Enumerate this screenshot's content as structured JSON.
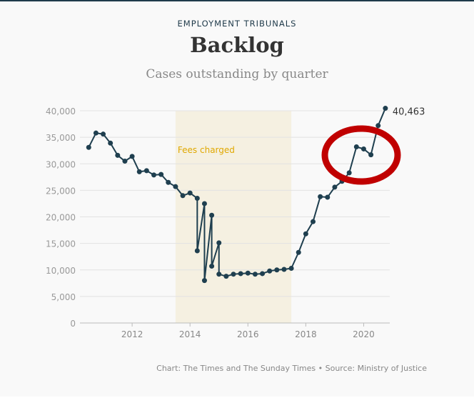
{
  "header": {
    "kicker": "EMPLOYMENT TRIBUNALS",
    "title": "Backlog",
    "subtitle": "Cases outstanding by quarter"
  },
  "footer": {
    "credit": "Chart: The Times and The Sunday Times • Source: Ministry of Justice"
  },
  "chart_data": {
    "type": "line",
    "title": "Backlog",
    "subtitle": "Cases outstanding by quarter",
    "xlabel": "",
    "ylabel": "",
    "xlim": [
      2010,
      2021
    ],
    "ylim": [
      0,
      40000
    ],
    "yticks": [
      0,
      5000,
      10000,
      15000,
      20000,
      25000,
      30000,
      35000,
      40000
    ],
    "ytick_labels": [
      "0",
      "5,000",
      "10,000",
      "15,000",
      "20,000",
      "25,000",
      "30,000",
      "35,000",
      "40,000"
    ],
    "xticks": [
      2012,
      2014,
      2016,
      2018,
      2020
    ],
    "xtick_labels": [
      "2012",
      "2014",
      "2016",
      "2018",
      "2020"
    ],
    "grid": true,
    "shaded_region": {
      "label": "Fees charged",
      "from": 2013.5,
      "to": 2017.5
    },
    "end_label": "40,463",
    "series": [
      {
        "name": "Cases outstanding",
        "x": [
          2010.5,
          2010.75,
          2011,
          2011.25,
          2011.5,
          2011.75,
          2012,
          2012.25,
          2012.5,
          2012.75,
          2013,
          2013.25,
          2013.5,
          2013.75,
          2014,
          2014.25,
          2014.25,
          2014.5,
          2014.5,
          2014.75,
          2014.75,
          2015,
          2015,
          2015.25,
          2015.5,
          2015.75,
          2016,
          2016.25,
          2016.5,
          2016.75,
          2017,
          2017.25,
          2017.5,
          2017.75,
          2018,
          2018.25,
          2018.5,
          2018.75,
          2019,
          2019.25,
          2019.5,
          2019.75,
          2020,
          2020.25,
          2020.5,
          2020.75
        ],
        "values": [
          33100,
          35800,
          35600,
          33900,
          31600,
          30500,
          31400,
          28500,
          28700,
          27900,
          28000,
          26500,
          25700,
          24000,
          24500,
          23500,
          13600,
          22500,
          8000,
          20300,
          10700,
          15100,
          9200,
          8800,
          9200,
          9300,
          9400,
          9200,
          9300,
          9800,
          10000,
          10100,
          10300,
          13300,
          16800,
          19100,
          23800,
          23700,
          25600,
          26700,
          28300,
          33200,
          32800,
          31700,
          37200,
          40463
        ]
      }
    ],
    "colors": {
      "line": "#1f3f4f",
      "shade": "#f5f0e1",
      "fees_label": "#e0a800",
      "annotation": "#c00000",
      "grid": "#e2e2e2"
    }
  }
}
